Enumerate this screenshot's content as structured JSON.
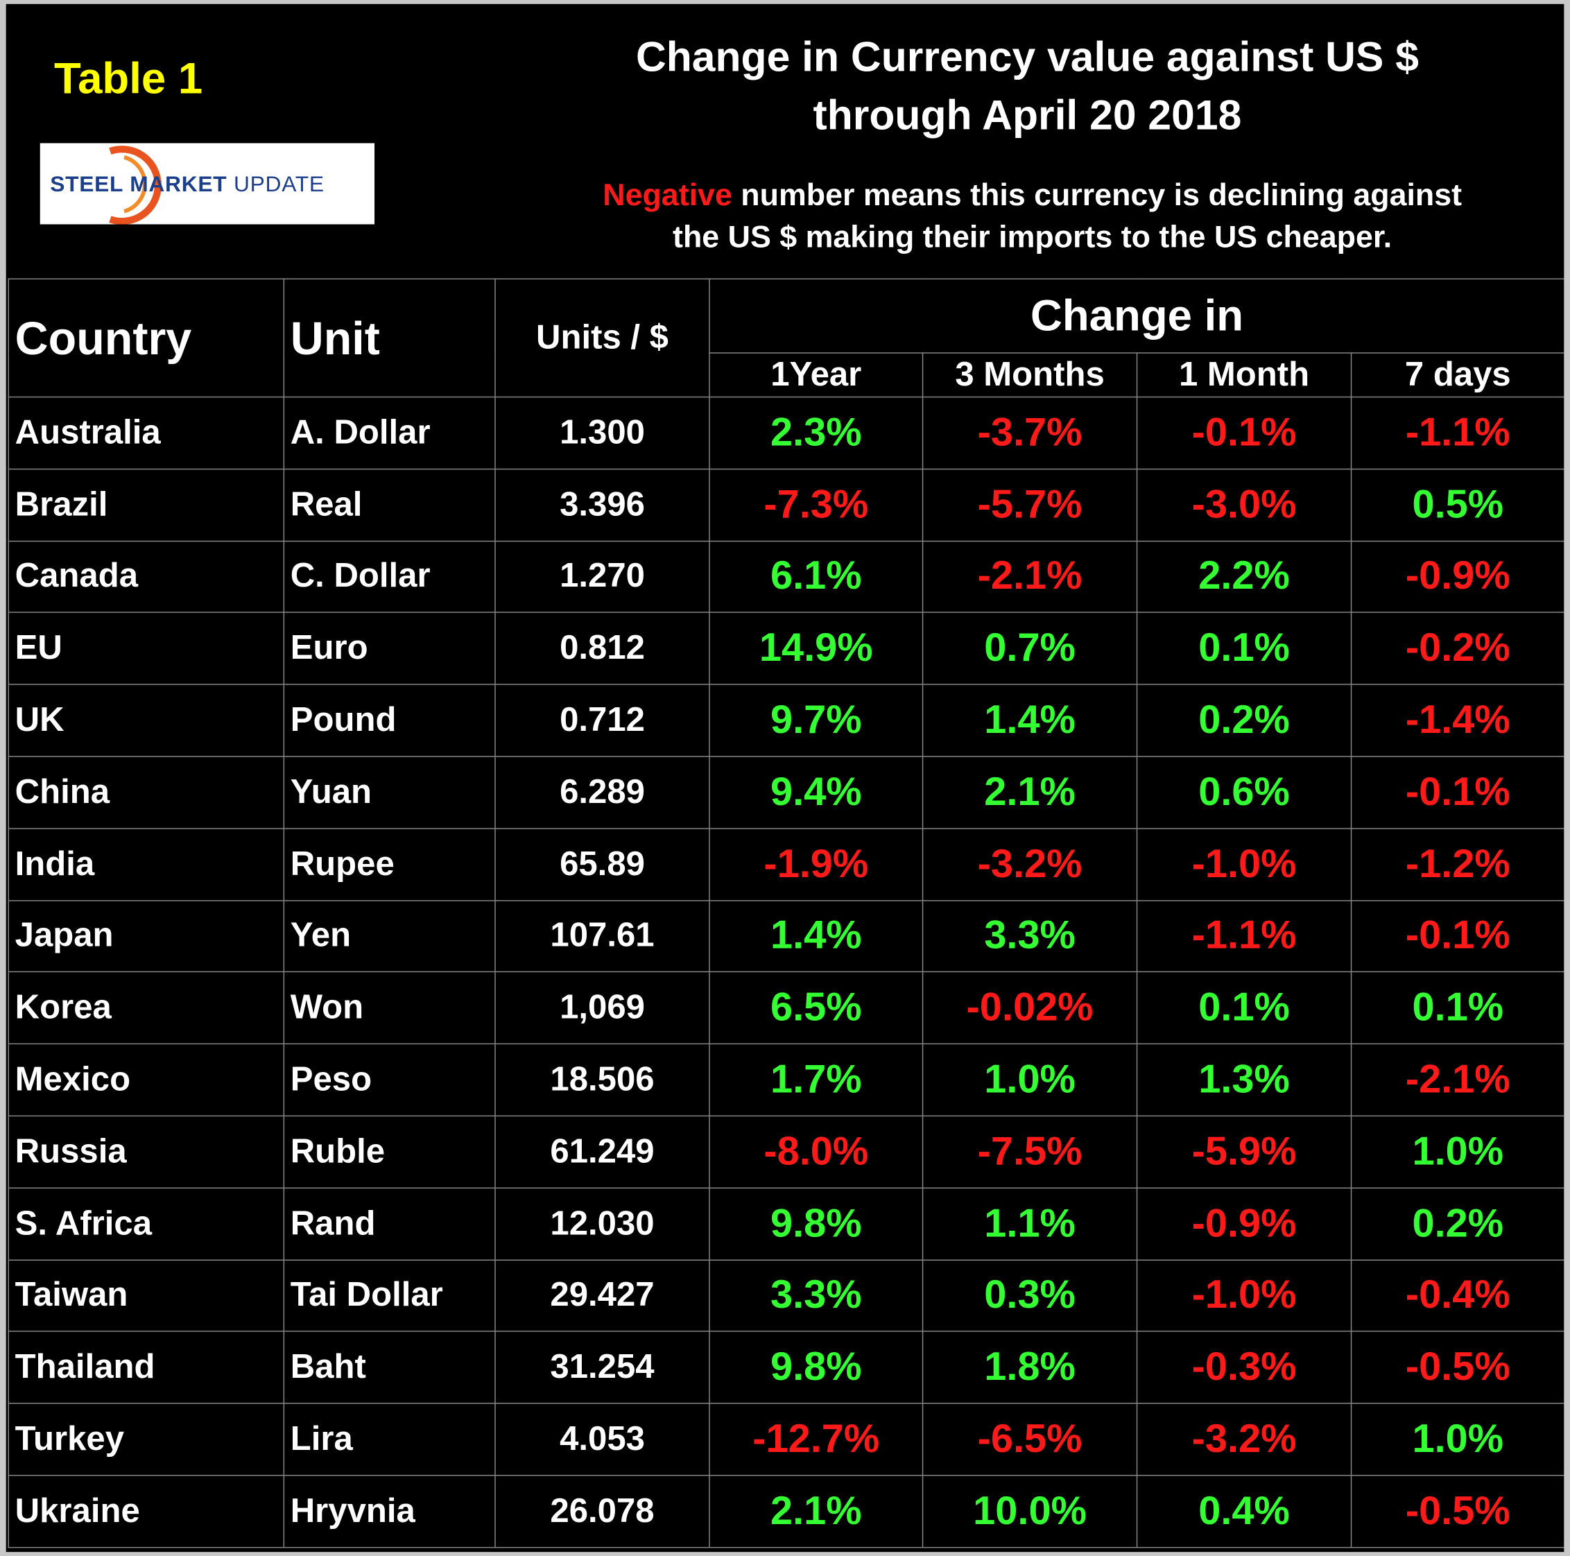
{
  "header": {
    "label": "Table 1",
    "title": [
      "Change in Currency value against US $",
      "through April 20 2018"
    ],
    "logo": [
      "STEEL",
      "MARKET",
      "UPDATE"
    ],
    "note": {
      "highlight": "Negative",
      "text": [
        "number means this currency is declining against",
        "the US $ making their imports to the US cheaper."
      ]
    }
  },
  "table": {
    "columns": [
      "Country",
      "Unit",
      "Units / $"
    ],
    "group": "Change in",
    "periods": [
      "1Year",
      "3 Months",
      "1 Month",
      "7 days"
    ],
    "rows": [
      [
        "Australia",
        "A. Dollar",
        "1.300",
        "2.3%",
        "-3.7%",
        "-0.1%",
        "-1.1%"
      ],
      [
        "Brazil",
        "Real",
        "3.396",
        "-7.3%",
        "-5.7%",
        "-3.0%",
        "0.5%"
      ],
      [
        "Canada",
        "C. Dollar",
        "1.270",
        "6.1%",
        "-2.1%",
        "2.2%",
        "-0.9%"
      ],
      [
        "EU",
        "Euro",
        "0.812",
        "14.9%",
        "0.7%",
        "0.1%",
        "-0.2%"
      ],
      [
        "UK",
        "Pound",
        "0.712",
        "9.7%",
        "1.4%",
        "0.2%",
        "-1.4%"
      ],
      [
        "China",
        "Yuan",
        "6.289",
        "9.4%",
        "2.1%",
        "0.6%",
        "-0.1%"
      ],
      [
        "India",
        "Rupee",
        "65.89",
        "-1.9%",
        "-3.2%",
        "-1.0%",
        "-1.2%"
      ],
      [
        "Japan",
        "Yen",
        "107.61",
        "1.4%",
        "3.3%",
        "-1.1%",
        "-0.1%"
      ],
      [
        "Korea",
        "Won",
        "1,069",
        "6.5%",
        "-0.02%",
        "0.1%",
        "0.1%"
      ],
      [
        "Mexico",
        "Peso",
        "18.506",
        "1.7%",
        "1.0%",
        "1.3%",
        "-2.1%"
      ],
      [
        "Russia",
        "Ruble",
        "61.249",
        "-8.0%",
        "-7.5%",
        "-5.9%",
        "1.0%"
      ],
      [
        "S. Africa",
        "Rand",
        "12.030",
        "9.8%",
        "1.1%",
        "-0.9%",
        "0.2%"
      ],
      [
        "Taiwan",
        "Tai Dollar",
        "29.427",
        "3.3%",
        "0.3%",
        "-1.0%",
        "-0.4%"
      ],
      [
        "Thailand",
        "Baht",
        "31.254",
        "9.8%",
        "1.8%",
        "-0.3%",
        "-0.5%"
      ],
      [
        "Turkey",
        "Lira",
        "4.053",
        "-12.7%",
        "-6.5%",
        "-3.2%",
        "1.0%"
      ],
      [
        "Ukraine",
        "Hryvnia",
        "26.078",
        "2.1%",
        "10.0%",
        "0.4%",
        "-0.5%"
      ]
    ]
  }
}
